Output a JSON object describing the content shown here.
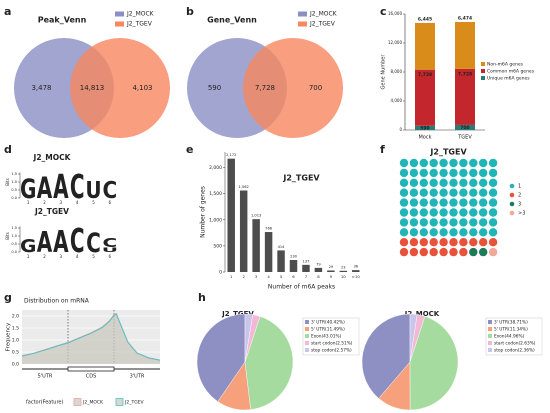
{
  "chart_data": [
    {
      "type": "venn",
      "panel": "a",
      "title": "Peak_Venn",
      "series": [
        {
          "name": "J2_MOCK",
          "color": "#8b8fc4"
        },
        {
          "name": "J2_TGEV",
          "color": "#f7875f"
        }
      ],
      "values": [
        3478,
        14813,
        4103
      ],
      "value_labels": [
        "3,478",
        "14,813",
        "4,103"
      ]
    },
    {
      "type": "venn",
      "panel": "b",
      "title": "Gene_Venn",
      "series": [
        {
          "name": "J2_MOCK",
          "color": "#8b8fc4"
        },
        {
          "name": "J2_TGEV",
          "color": "#f7875f"
        }
      ],
      "values": [
        590,
        7728,
        700
      ],
      "value_labels": [
        "590",
        "7,728",
        "700"
      ]
    },
    {
      "type": "stacked_bar",
      "panel": "c",
      "ylabel": "Gene Number",
      "categories": [
        "Mock",
        "TGEV"
      ],
      "series": [
        {
          "name": "Unique m6A genes",
          "color": "#2a7b78",
          "values": [
            590,
            700
          ],
          "value_labels": [
            "590",
            "700"
          ]
        },
        {
          "name": "Common m6A genes",
          "color": "#c3262c",
          "values": [
            7728,
            7728
          ],
          "value_labels": [
            "7,728",
            "7,728"
          ]
        },
        {
          "name": "Non-m6A genes",
          "color": "#d98c1a",
          "values": [
            6445,
            6474
          ],
          "value_labels": [
            "6,445",
            "6,474"
          ]
        }
      ],
      "ylim": [
        0,
        16000
      ],
      "yticks": [
        0,
        {
          "value": 4000,
          "label": "4,000"
        },
        {
          "value": 8000,
          "label": "8,000"
        },
        {
          "value": 12000,
          "label": "12,000"
        },
        {
          "value": 16000,
          "label": "16,000"
        }
      ]
    },
    {
      "type": "logo",
      "panel": "d",
      "ylabel": "Bits",
      "xlim": [
        0.5,
        6.5
      ],
      "ylim": [
        0,
        2
      ],
      "yticks": [
        {
          "value": 0,
          "label": "0.0"
        },
        0.5,
        {
          "value": 1,
          "label": "1.0"
        },
        1.5
      ],
      "letter_colors": {
        "G": "#f5a623",
        "A": "#2ca02c",
        "C": "#1f77b4",
        "U": "#d62728"
      },
      "motifs": [
        {
          "name": "J2_MOCK",
          "letters": [
            "G",
            "A",
            "A",
            "C",
            "U",
            "C"
          ],
          "x": [
            1,
            2,
            3,
            4,
            5,
            6
          ],
          "values": [
            1.2,
            1.35,
            1.5,
            1.5,
            1.05,
            1.05
          ]
        },
        {
          "name": "J2_TGEV",
          "letters": [
            "G",
            "A",
            "A",
            "C",
            "C",
            "U",
            "C"
          ],
          "x": [
            1,
            2,
            3,
            4,
            5,
            6,
            6
          ],
          "values": [
            0.8,
            1.3,
            1.4,
            1.5,
            1.2,
            0.3,
            0.55
          ]
        }
      ]
    },
    {
      "type": "bar",
      "panel": "e",
      "title": "J2_TGEV",
      "xlabel": "Number of m6A peaks",
      "ylabel": "Number of genes",
      "color": "#4d4d4d",
      "categories": [
        "1",
        "2",
        "3",
        "4",
        "5",
        "6",
        "7",
        "8",
        "9",
        "10",
        ">10"
      ],
      "values": [
        2172,
        1562,
        1013,
        766,
        414,
        230,
        137,
        79,
        29,
        23,
        36
      ],
      "value_labels": [
        "2,172",
        "1,562",
        "1,013",
        "766",
        "414",
        "230",
        "137",
        "79",
        "29",
        "23",
        "36"
      ],
      "ylim": [
        0,
        2300
      ],
      "yticks": [
        0,
        500,
        {
          "value": 1000,
          "label": "1,000"
        },
        {
          "value": 1500,
          "label": "1,500"
        },
        {
          "value": 2000,
          "label": "2,000"
        }
      ]
    },
    {
      "type": "waffle",
      "panel": "f",
      "title": "J2_TGEV",
      "categories": [
        "1",
        "2",
        "3",
        ">3"
      ],
      "values": [
        80,
        17,
        2,
        1
      ],
      "colors": [
        "#21b5b8",
        "#e8523a",
        "#1e7a5a",
        "#f0a898"
      ]
    },
    {
      "type": "density",
      "panel": "g",
      "title": "Distribution on mRNA",
      "ylabel": "Frequency",
      "regions": [
        "5'UTR",
        "CDS",
        "3'UTR"
      ],
      "legend_title": "factor(Feature)",
      "xlim": [
        0,
        3
      ],
      "ylim": [
        0,
        2.25
      ],
      "yticks": [
        {
          "value": 0,
          "label": "0.0"
        },
        0.5,
        {
          "value": 1,
          "label": "1.0"
        },
        1.5,
        {
          "value": 2,
          "label": "2.0"
        }
      ],
      "x": [
        0,
        0.25,
        0.5,
        0.75,
        1,
        1.25,
        1.5,
        1.75,
        1.9,
        2,
        2.05,
        2.15,
        2.3,
        2.5,
        2.75,
        3
      ],
      "series": [
        {
          "name": "J2_MOCK",
          "color": "#f4a0a0",
          "values": [
            0.35,
            0.45,
            0.6,
            0.75,
            0.9,
            1.1,
            1.3,
            1.55,
            1.8,
            2.05,
            2.1,
            1.6,
            0.9,
            0.45,
            0.25,
            0.15
          ]
        },
        {
          "name": "J2_TGEV",
          "color": "#4fc3c8",
          "values": [
            0.33,
            0.44,
            0.58,
            0.74,
            0.88,
            1.08,
            1.28,
            1.52,
            1.78,
            2.02,
            2.08,
            1.62,
            0.92,
            0.46,
            0.26,
            0.16
          ]
        }
      ]
    },
    {
      "type": "pie",
      "panel": "h",
      "title": "J2_TGEV",
      "categories": [
        "3' UTR(40.42%)",
        "5' UTR(11.49%)",
        "Exon(43.01%)",
        "start codon(2.51%)",
        "stop codon(2.57%)"
      ],
      "values": [
        40.42,
        11.49,
        43.01,
        2.51,
        2.57
      ],
      "colors": [
        "#8e8fc2",
        "#f7a07c",
        "#a6dba0",
        "#f2b8d6",
        "#c9c6ea"
      ]
    },
    {
      "type": "pie",
      "title": "J2_MOCK",
      "categories": [
        "3' UTR(38.71%)",
        "5' UTR(11.34%)",
        "Exon(44.96%)",
        "start codon(2.63%)",
        "stop codon(2.36%)"
      ],
      "values": [
        38.71,
        11.34,
        44.96,
        2.63,
        2.36
      ],
      "colors": [
        "#8e8fc2",
        "#f7a07c",
        "#a6dba0",
        "#f2b8d6",
        "#c9c6ea"
      ]
    }
  ]
}
